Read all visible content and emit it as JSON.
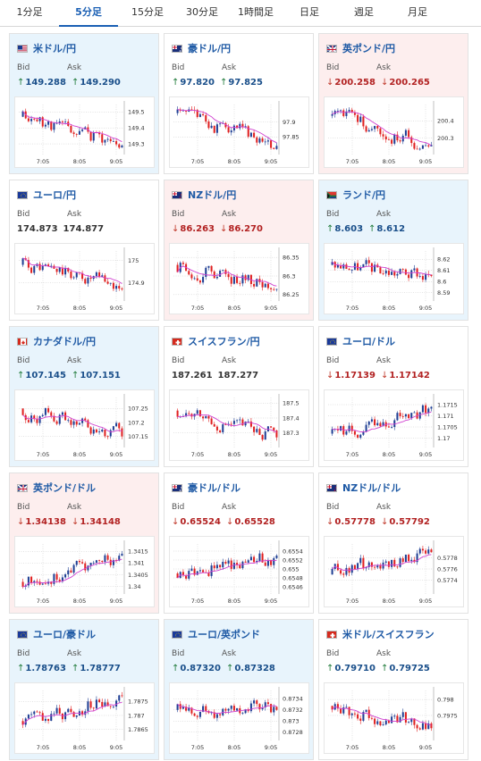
{
  "tabs": [
    "1分足",
    "5分足",
    "15分足",
    "30分足",
    "1時間足",
    "日足",
    "週足",
    "月足"
  ],
  "active_tab": 1,
  "labels": {
    "bid": "Bid",
    "ask": "Ask"
  },
  "colors": {
    "accent": "#1a5fb4",
    "card_blue": "#e8f4fc",
    "card_pink": "#fdeeee",
    "candle_up": "#1f3f94",
    "candle_down": "#e02020",
    "ma_line": "#d040d0",
    "price_up": "#1a4f8a",
    "price_down": "#b22222"
  },
  "pairs": [
    {
      "name": "米ドル/円",
      "flag": "us-flag",
      "bg": "blue",
      "bid": "149.288",
      "ask": "149.290",
      "dir": "up",
      "seed": 11,
      "chart_data": {
        "type": "candlestick",
        "x_ticks": [
          "7:05",
          "8:05",
          "9:05"
        ],
        "y_ticks": [
          "149.5",
          "149.4",
          "149.3"
        ],
        "y_values": [
          149.5,
          149.4,
          149.3
        ],
        "start": 149.47,
        "end": 149.29,
        "low": 149.25,
        "high": 149.53
      }
    },
    {
      "name": "豪ドル/円",
      "flag": "au-flag",
      "bg": "white",
      "bid": "97.820",
      "ask": "97.825",
      "dir": "up",
      "seed": 23,
      "chart_data": {
        "type": "candlestick",
        "x_ticks": [
          "7:05",
          "8:05",
          "9:05"
        ],
        "y_ticks": [
          "97.9",
          "97.85"
        ],
        "y_values": [
          97.9,
          97.85
        ],
        "start": 97.93,
        "end": 97.82,
        "low": 97.8,
        "high": 97.95
      }
    },
    {
      "name": "英ポンド/円",
      "flag": "gb-flag",
      "bg": "pink",
      "bid": "200.258",
      "ask": "200.265",
      "dir": "down",
      "seed": 37,
      "chart_data": {
        "type": "candlestick",
        "x_ticks": [
          "7:05",
          "8:05",
          "9:05"
        ],
        "y_ticks": [
          "200.4",
          "200.3"
        ],
        "y_values": [
          200.4,
          200.3
        ],
        "start": 200.43,
        "end": 200.26,
        "low": 200.22,
        "high": 200.48
      }
    },
    {
      "name": "ユーロ/円",
      "flag": "eu-flag",
      "bg": "white",
      "bid": "174.873",
      "ask": "174.877",
      "dir": "flat",
      "seed": 41,
      "chart_data": {
        "type": "candlestick",
        "x_ticks": [
          "7:05",
          "8:05",
          "9:05"
        ],
        "y_ticks": [
          "175",
          "174.9"
        ],
        "y_values": [
          175,
          174.9
        ],
        "start": 174.98,
        "end": 174.87,
        "low": 174.83,
        "high": 175.03
      }
    },
    {
      "name": "NZドル/円",
      "flag": "nz-flag",
      "bg": "pink",
      "bid": "86.263",
      "ask": "86.270",
      "dir": "down",
      "seed": 53,
      "chart_data": {
        "type": "candlestick",
        "x_ticks": [
          "7:05",
          "8:05",
          "9:05"
        ],
        "y_ticks": [
          "86.35",
          "86.3",
          "86.25"
        ],
        "y_values": [
          86.35,
          86.3,
          86.25
        ],
        "start": 86.33,
        "end": 86.265,
        "low": 86.24,
        "high": 86.36
      }
    },
    {
      "name": "ランド/円",
      "flag": "za-flag",
      "bg": "blue",
      "bid": "8.603",
      "ask": "8.612",
      "dir": "up",
      "seed": 67,
      "chart_data": {
        "type": "candlestick",
        "x_ticks": [
          "7:05",
          "8:05",
          "9:05"
        ],
        "y_ticks": [
          "8.62",
          "8.61",
          "8.6",
          "8.59"
        ],
        "y_values": [
          8.62,
          8.61,
          8.6,
          8.59
        ],
        "start": 8.615,
        "end": 8.605,
        "low": 8.585,
        "high": 8.625
      }
    },
    {
      "name": "カナダドル/円",
      "flag": "ca-flag",
      "bg": "blue",
      "bid": "107.145",
      "ask": "107.151",
      "dir": "up",
      "seed": 71,
      "chart_data": {
        "type": "candlestick",
        "x_ticks": [
          "7:05",
          "8:05",
          "9:05"
        ],
        "y_ticks": [
          "107.25",
          "107.2",
          "107.15"
        ],
        "y_values": [
          107.25,
          107.2,
          107.15
        ],
        "start": 107.25,
        "end": 107.15,
        "low": 107.12,
        "high": 107.28
      }
    },
    {
      "name": "スイスフラン/円",
      "flag": "ch-flag",
      "bg": "white",
      "bid": "187.261",
      "ask": "187.277",
      "dir": "flat",
      "seed": 83,
      "chart_data": {
        "type": "candlestick",
        "x_ticks": [
          "7:05",
          "8:05",
          "9:05"
        ],
        "y_ticks": [
          "187.5",
          "187.4",
          "187.3"
        ],
        "y_values": [
          187.5,
          187.4,
          187.3
        ],
        "start": 187.45,
        "end": 187.27,
        "low": 187.22,
        "high": 187.52
      }
    },
    {
      "name": "ユーロ/ドル",
      "flag": "eu-flag",
      "bg": "white",
      "bid": "1.17139",
      "ask": "1.17142",
      "dir": "down",
      "seed": 97,
      "chart_data": {
        "type": "candlestick",
        "x_ticks": [
          "7:05",
          "8:05",
          "9:05"
        ],
        "y_ticks": [
          "1.1715",
          "1.171",
          "1.1705",
          "1.17"
        ],
        "y_values": [
          1.1715,
          1.171,
          1.1705,
          1.17
        ],
        "start": 1.1702,
        "end": 1.1714,
        "low": 1.1697,
        "high": 1.1717
      }
    },
    {
      "name": "英ポンド/ドル",
      "flag": "gb-flag",
      "bg": "pink",
      "bid": "1.34138",
      "ask": "1.34148",
      "dir": "down",
      "seed": 101,
      "chart_data": {
        "type": "candlestick",
        "x_ticks": [
          "7:05",
          "8:05",
          "9:05"
        ],
        "y_ticks": [
          "1.3415",
          "1.341",
          "1.3405",
          "1.34"
        ],
        "y_values": [
          1.3415,
          1.341,
          1.3405,
          1.34
        ],
        "start": 1.3402,
        "end": 1.3414,
        "low": 1.3398,
        "high": 1.3417
      }
    },
    {
      "name": "豪ドル/ドル",
      "flag": "au-flag",
      "bg": "white",
      "bid": "0.65524",
      "ask": "0.65528",
      "dir": "down",
      "seed": 113,
      "chart_data": {
        "type": "candlestick",
        "x_ticks": [
          "7:05",
          "8:05",
          "9:05"
        ],
        "y_ticks": [
          "0.6554",
          "0.6552",
          "0.655",
          "0.6548",
          "0.6546"
        ],
        "y_values": [
          0.6554,
          0.6552,
          0.655,
          0.6548,
          0.6546
        ],
        "start": 0.6549,
        "end": 0.6553,
        "low": 0.6545,
        "high": 0.6555
      }
    },
    {
      "name": "NZドル/ドル",
      "flag": "nz-flag",
      "bg": "white",
      "bid": "0.57778",
      "ask": "0.57792",
      "dir": "down",
      "seed": 127,
      "chart_data": {
        "type": "candlestick",
        "x_ticks": [
          "7:05",
          "8:05",
          "9:05"
        ],
        "y_ticks": [
          "0.5778",
          "0.5776",
          "0.5774"
        ],
        "y_values": [
          0.5778,
          0.5776,
          0.5774
        ],
        "start": 0.5775,
        "end": 0.5779,
        "low": 0.5772,
        "high": 0.578
      }
    },
    {
      "name": "ユーロ/豪ドル",
      "flag": "eu-flag",
      "bg": "blue",
      "bid": "1.78763",
      "ask": "1.78777",
      "dir": "up",
      "seed": 131,
      "chart_data": {
        "type": "candlestick",
        "x_ticks": [
          "7:05",
          "8:05",
          "9:05"
        ],
        "y_ticks": [
          "1.7875",
          "1.787",
          "1.7865"
        ],
        "y_values": [
          1.7875,
          1.787,
          1.7865
        ],
        "start": 1.7868,
        "end": 1.7877,
        "low": 1.7862,
        "high": 1.7878
      }
    },
    {
      "name": "ユーロ/英ポンド",
      "flag": "eu-flag",
      "bg": "blue",
      "bid": "0.87320",
      "ask": "0.87328",
      "dir": "up",
      "seed": 139,
      "chart_data": {
        "type": "candlestick",
        "x_ticks": [
          "7:05",
          "8:05",
          "9:05"
        ],
        "y_ticks": [
          "0.8734",
          "0.8732",
          "0.873",
          "0.8728"
        ],
        "y_values": [
          0.8734,
          0.8732,
          0.873,
          0.8728
        ],
        "start": 0.8732,
        "end": 0.8732,
        "low": 0.8727,
        "high": 0.8735
      }
    },
    {
      "name": "米ドル/スイスフラン",
      "flag": "ch-flag",
      "bg": "white",
      "bid": "0.79710",
      "ask": "0.79725",
      "dir": "up",
      "seed": 149,
      "chart_data": {
        "type": "candlestick",
        "x_ticks": [
          "7:05",
          "8:05",
          "9:05"
        ],
        "y_ticks": [
          "0.798",
          "0.7975"
        ],
        "y_values": [
          0.798,
          0.7975
        ],
        "start": 0.7978,
        "end": 0.7971,
        "low": 0.7968,
        "high": 0.7982
      }
    }
  ]
}
